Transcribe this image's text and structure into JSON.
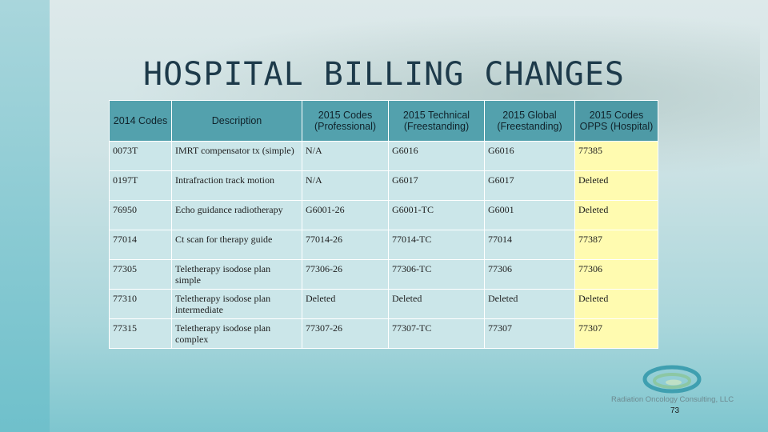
{
  "title": "HOSPITAL BILLING CHANGES",
  "table": {
    "headers": [
      "2014 Codes",
      "Description",
      "2015 Codes (Professional)",
      "2015 Technical (Freestanding)",
      "2015 Global (Freestanding)",
      "2015 Codes OPPS (Hospital)"
    ],
    "rows": [
      [
        "0073T",
        "IMRT compensator tx (simple)",
        "N/A",
        "G6016",
        "G6016",
        "77385"
      ],
      [
        "0197T",
        "Intrafraction track motion",
        "N/A",
        "G6017",
        "G6017",
        "Deleted"
      ],
      [
        "76950",
        "Echo guidance radiotherapy",
        "G6001-26",
        "G6001-TC",
        "G6001",
        "Deleted"
      ],
      [
        "77014",
        "Ct scan for therapy guide",
        "77014-26",
        "77014-TC",
        "77014",
        "77387"
      ],
      [
        "77305",
        "Teletherapy isodose plan simple",
        "77306-26",
        "77306-TC",
        "77306",
        "77306"
      ],
      [
        "77310",
        "Teletherapy isodose plan intermediate",
        "Deleted",
        "Deleted",
        "Deleted",
        "Deleted"
      ],
      [
        "77315",
        "Teletherapy isodose plan complex",
        "77307-26",
        "77307-TC",
        "77307",
        "77307"
      ]
    ]
  },
  "logo": {
    "text": "Radiation Oncology Consulting, LLC",
    "icon": "swirl-logo-icon",
    "colors": [
      "#3f9fb0",
      "#8cc7a4"
    ]
  },
  "page_number": "73",
  "colors": {
    "header_bg": "#53a1ad",
    "cell_bg": "#cbe6e9",
    "opps_cell_bg": "#fffbb0",
    "title": "#1d3a4a"
  }
}
